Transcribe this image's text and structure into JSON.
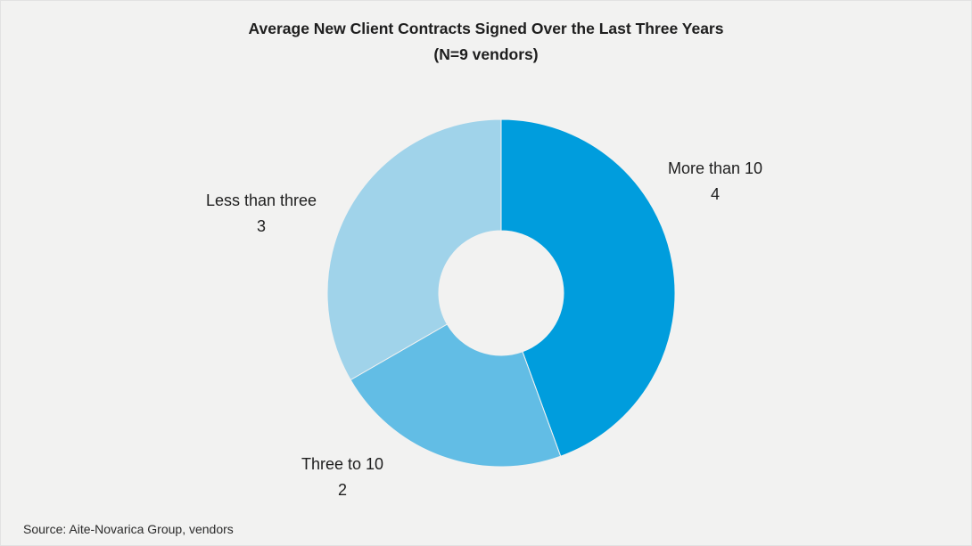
{
  "chart_data": {
    "type": "pie",
    "donut": true,
    "title": "Average New Client Contracts Signed Over the Last Three Years",
    "subtitle": "(N=9 vendors)",
    "slices": [
      {
        "label": "More than 10",
        "value": 4,
        "color": "#009ddd"
      },
      {
        "label": "Three to 10",
        "value": 2,
        "color": "#62bde5"
      },
      {
        "label": "Less than three",
        "value": 3,
        "color": "#a0d3ea"
      }
    ],
    "source": "Source: Aite-Novarica Group, vendors"
  }
}
